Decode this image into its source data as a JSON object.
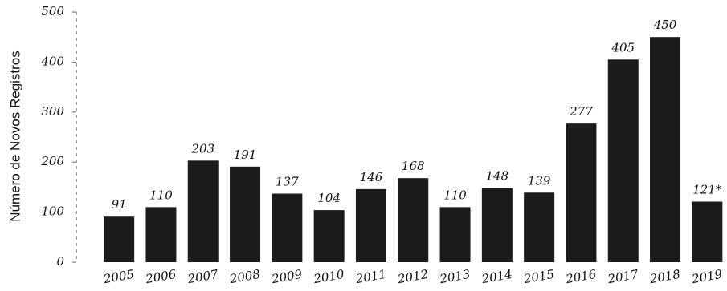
{
  "chart_data": {
    "type": "bar",
    "y_label": "Número de Novos Registros",
    "categories": [
      "2005",
      "2006",
      "2007",
      "2008",
      "2009",
      "2010",
      "2011",
      "2012",
      "2013",
      "2014",
      "2015",
      "2016",
      "2017",
      "2018",
      "2019"
    ],
    "values": [
      91,
      110,
      203,
      191,
      137,
      104,
      146,
      168,
      110,
      148,
      139,
      277,
      405,
      450,
      121
    ],
    "value_labels": [
      "91",
      "110",
      "203",
      "191",
      "137",
      "104",
      "146",
      "168",
      "110",
      "148",
      "139",
      "277",
      "405",
      "450",
      "121*"
    ],
    "color": "#1b1b1b",
    "ylim": [
      0,
      500
    ],
    "yticks": [
      0,
      100,
      200,
      300,
      400,
      500
    ],
    "grid": false
  }
}
